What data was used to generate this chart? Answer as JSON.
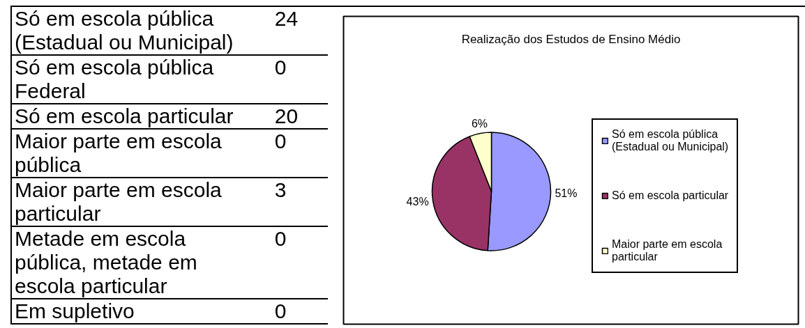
{
  "chart_data": [
    {
      "type": "other",
      "categories": [
        "Só em escola pública (Estadual ou Municipal)",
        "Só em escola pública Federal",
        "Só em escola particular",
        "Maior parte em escola pública",
        "Maior parte em escola particular",
        "Metade em escola pública, metade em escola particular",
        "Em supletivo"
      ],
      "values": [
        24,
        0,
        20,
        0,
        3,
        0,
        0
      ],
      "data_labels": true
    },
    {
      "type": "pie",
      "title": "Realização dos Estudos de Ensino Médio",
      "categories": [
        "Só em escola pública (Estadual ou Municipal)",
        "Só em escola particular",
        "Maior parte em escola particular"
      ],
      "values": [
        51,
        43,
        6
      ],
      "colors": [
        "#9999ff",
        "#993366",
        "#ffffcc"
      ],
      "value_labels": [
        "51%",
        "43%",
        "6%"
      ],
      "legend": "right"
    }
  ]
}
